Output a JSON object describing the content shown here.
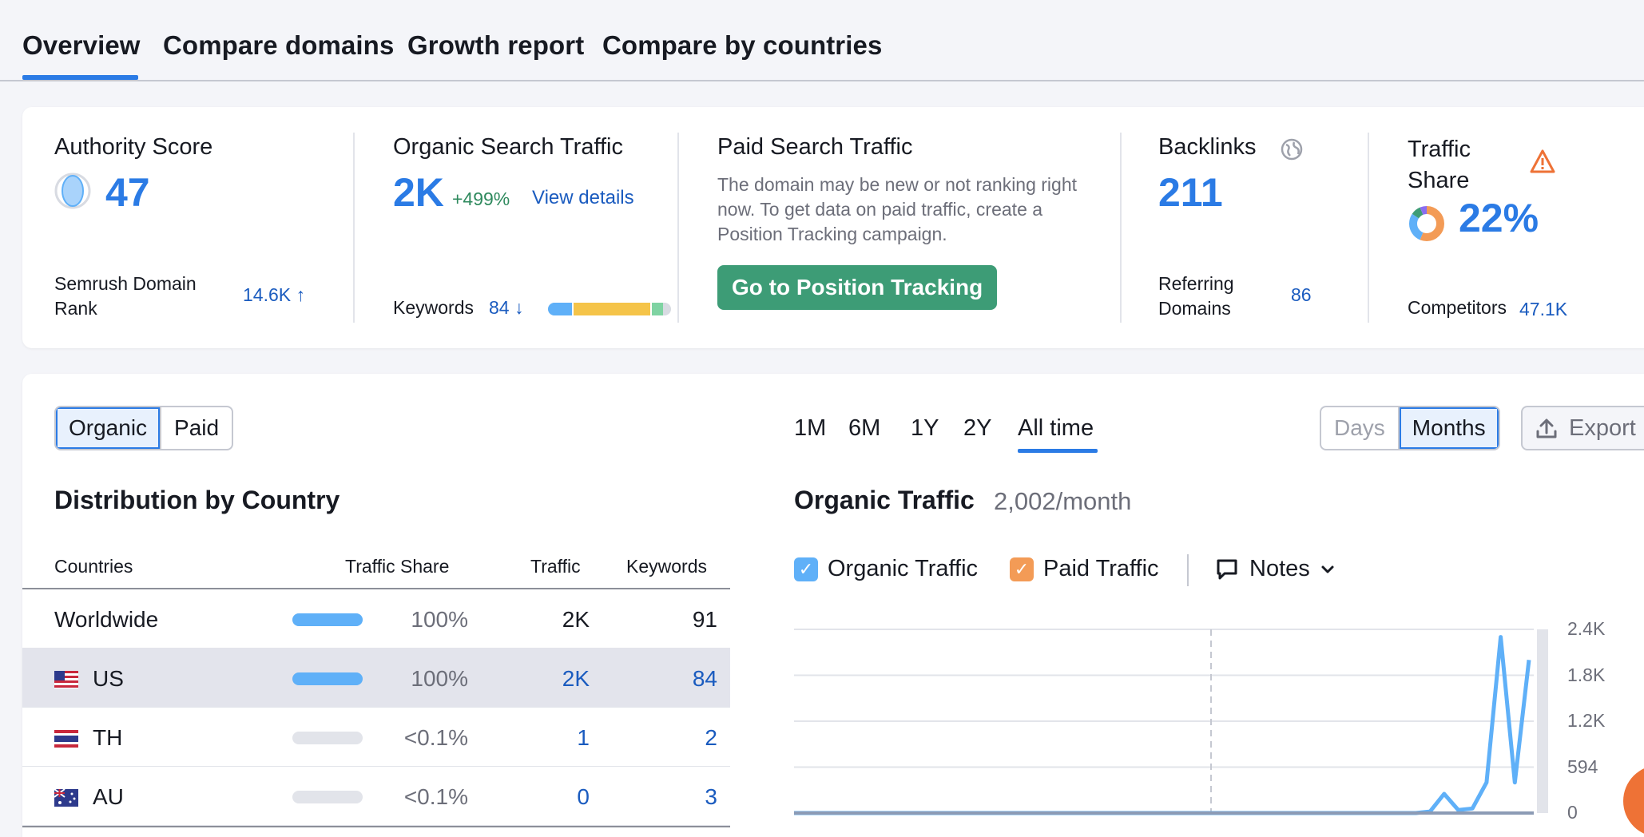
{
  "tabs": [
    {
      "label": "Overview"
    },
    {
      "label": "Compare domains"
    },
    {
      "label": "Growth report"
    },
    {
      "label": "Compare by countries"
    }
  ],
  "authority": {
    "title": "Authority Score",
    "value": "47",
    "rank_label": "Semrush Domain Rank",
    "rank_value": "14.6K ↑"
  },
  "organic": {
    "title": "Organic Search Traffic",
    "value": "2K",
    "change": "+499%",
    "details_link": "View details",
    "keywords_label": "Keywords",
    "keywords_value": "84 ↓"
  },
  "paid": {
    "title": "Paid Search Traffic",
    "description": "The domain may be new or not ranking right now. To get data on paid traffic, create a Position Tracking campaign.",
    "button": "Go to Position Tracking"
  },
  "backlinks": {
    "title": "Backlinks",
    "value": "211",
    "ref_label": "Referring Domains",
    "ref_value": "86"
  },
  "traffic_share": {
    "title": "Traffic Share",
    "value": "22%",
    "competitors_label": "Competitors",
    "competitors_value": "47.1K"
  },
  "toggle": {
    "organic": "Organic",
    "paid": "Paid"
  },
  "ranges": [
    "1M",
    "6M",
    "1Y",
    "2Y",
    "All time"
  ],
  "granularity": {
    "days": "Days",
    "months": "Months"
  },
  "export_label": "Export",
  "distribution": {
    "title": "Distribution by Country",
    "headers": {
      "country": "Countries",
      "share": "Traffic Share",
      "traffic": "Traffic",
      "keywords": "Keywords"
    },
    "rows": [
      {
        "country": "Worldwide",
        "share": "100%",
        "traffic": "2K",
        "keywords": "91"
      },
      {
        "country": "US",
        "share": "100%",
        "traffic": "2K",
        "keywords": "84"
      },
      {
        "country": "TH",
        "share": "<0.1%",
        "traffic": "1",
        "keywords": "2"
      },
      {
        "country": "AU",
        "share": "<0.1%",
        "traffic": "0",
        "keywords": "3"
      }
    ]
  },
  "chart_header": {
    "title": "Organic Traffic",
    "subtitle": "2,002/month"
  },
  "legend": {
    "organic": "Organic Traffic",
    "paid": "Paid Traffic",
    "notes": "Notes"
  },
  "colors": {
    "accent": "#2b7be5",
    "green": "#3d9c76",
    "organic": "#5fb0f8",
    "paid": "#f39b56",
    "warning": "#ee7236"
  },
  "chart_data": {
    "type": "line",
    "title": "Organic Traffic",
    "yticks": [
      "2.4K",
      "1.8K",
      "1.2K",
      "594",
      "0"
    ],
    "ylim": [
      0,
      2400
    ],
    "series": [
      {
        "name": "Organic Traffic",
        "values": [
          0,
          0,
          0,
          0,
          0,
          0,
          0,
          0,
          0,
          0,
          0,
          0,
          0,
          0,
          0,
          0,
          0,
          0,
          0,
          0,
          0,
          0,
          0,
          0,
          0,
          0,
          0,
          0,
          0,
          0,
          0,
          0,
          0,
          0,
          0,
          0,
          0,
          0,
          0,
          0,
          0,
          0,
          0,
          0,
          0,
          20,
          250,
          40,
          60,
          400,
          2300,
          400,
          2000
        ]
      },
      {
        "name": "Paid Traffic",
        "values": [
          0,
          0,
          0,
          0,
          0,
          0,
          0,
          0,
          0,
          0,
          0,
          0,
          0,
          0,
          0,
          0,
          0,
          0,
          0,
          0,
          0,
          0,
          0,
          0,
          0,
          0,
          0,
          0,
          0,
          0,
          0,
          0,
          0,
          0,
          0,
          0,
          0,
          0,
          0,
          0,
          0,
          0,
          0,
          0,
          0,
          0,
          0,
          0,
          0,
          0,
          0,
          0,
          0
        ]
      }
    ]
  }
}
